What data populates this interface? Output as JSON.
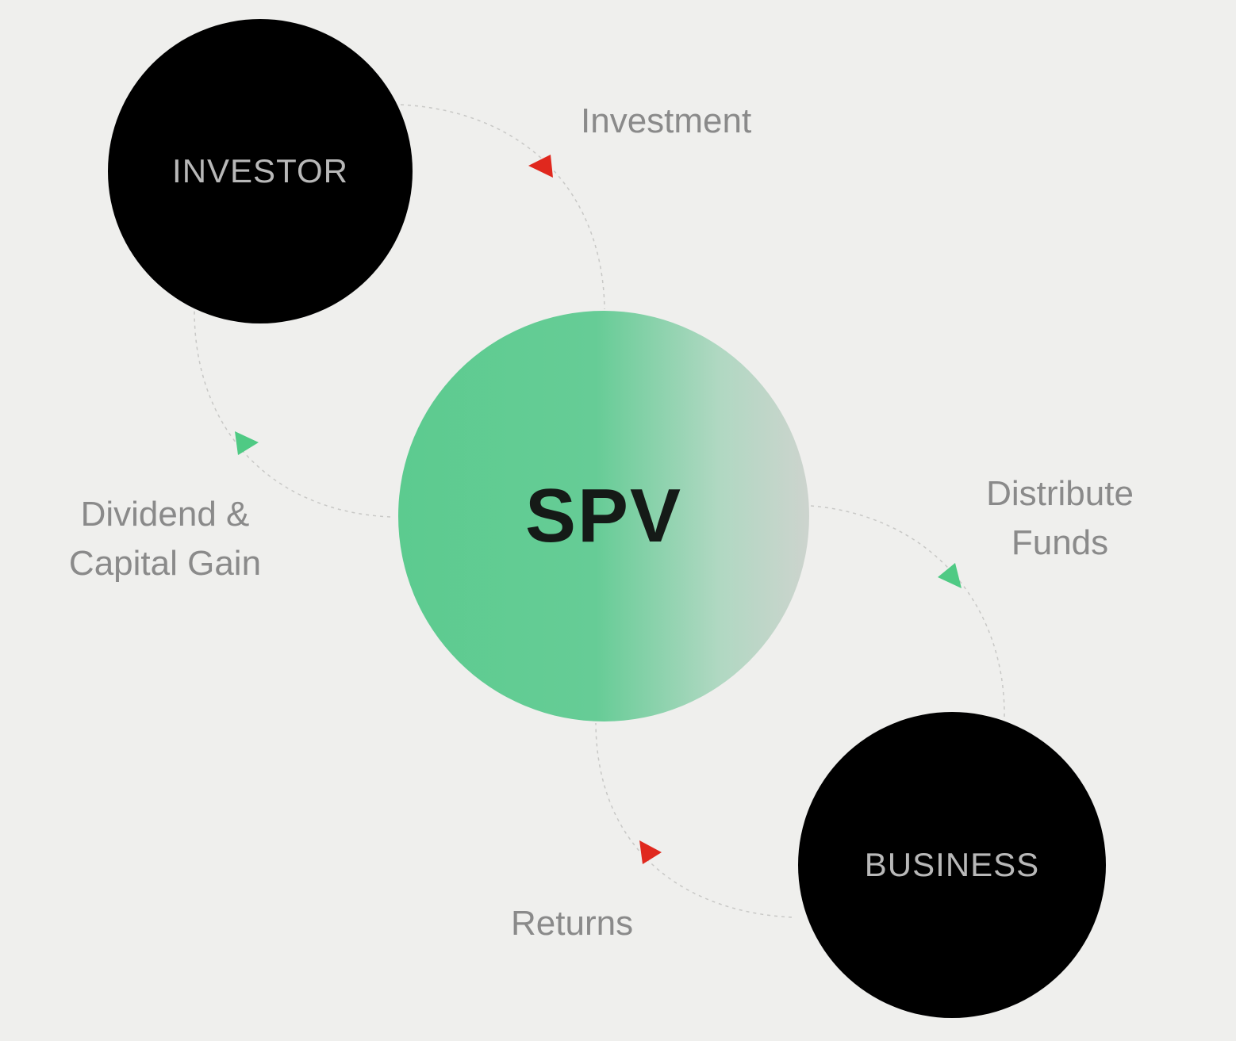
{
  "diagram": {
    "nodes": {
      "investor": {
        "label": "INVESTOR"
      },
      "spv": {
        "label": "SPV"
      },
      "business": {
        "label": "BUSINESS"
      }
    },
    "flows": {
      "investment": {
        "lines": [
          "Investment"
        ],
        "arrow_color": "#e0281e"
      },
      "distribute_funds": {
        "lines": [
          "Distribute",
          "Funds"
        ],
        "arrow_color": "#4fca84"
      },
      "returns": {
        "lines": [
          "Returns"
        ],
        "arrow_color": "#e0281e"
      },
      "dividend": {
        "lines": [
          "Dividend &",
          "Capital Gain"
        ],
        "arrow_color": "#4fca84"
      }
    },
    "colors": {
      "background": "#efefed",
      "node_dark": "#000000",
      "spv_gradient_start": "#5ccb8f",
      "spv_gradient_end": "#cdd4ce"
    }
  }
}
